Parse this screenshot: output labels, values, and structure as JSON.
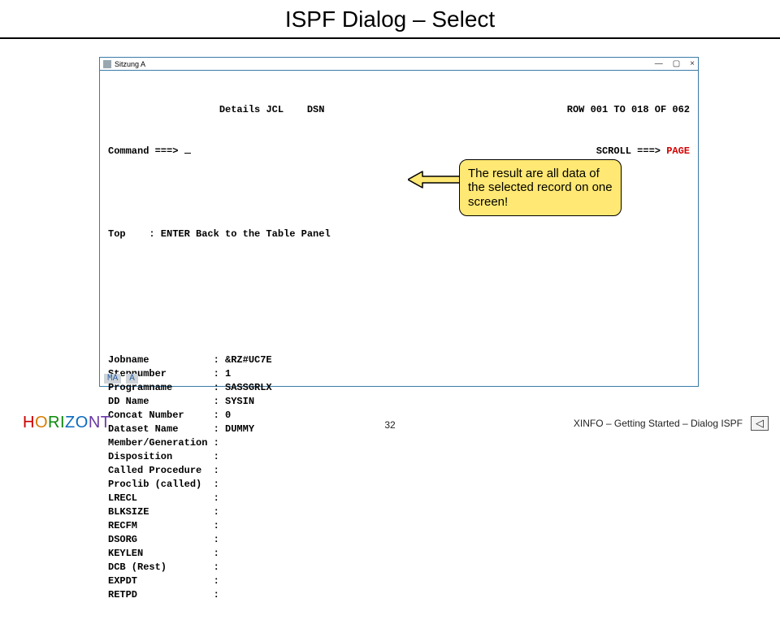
{
  "slide": {
    "title": "ISPF Dialog – Select"
  },
  "window": {
    "session_label": "Sitzung A",
    "screen_title_left": "Details JCL",
    "screen_title_right": "DSN",
    "row_info": "ROW 001 TO 018 OF 062",
    "scroll_label": "SCROLL ===>",
    "scroll_value": "PAGE",
    "command_label": "Command ===>",
    "help_line": "Top    : ENTER Back to the Table Panel",
    "status_left": "MA",
    "status_right": "A",
    "fields": [
      {
        "label": "Jobname",
        "value": "&RZ#UC7E"
      },
      {
        "label": "Stepnumber",
        "value": "1"
      },
      {
        "label": "Programname",
        "value": "SASSGRLX"
      },
      {
        "label": "DD Name",
        "value": "SYSIN"
      },
      {
        "label": "Concat Number",
        "value": "0"
      },
      {
        "label": "Dataset Name",
        "value": "DUMMY"
      },
      {
        "label": "Member/Generation",
        "value": ""
      },
      {
        "label": "Disposition",
        "value": ""
      },
      {
        "label": "Called Procedure",
        "value": ""
      },
      {
        "label": "Proclib (called)",
        "value": ""
      },
      {
        "label": "LRECL",
        "value": ""
      },
      {
        "label": "BLKSIZE",
        "value": ""
      },
      {
        "label": "RECFM",
        "value": ""
      },
      {
        "label": "DSORG",
        "value": ""
      },
      {
        "label": "KEYLEN",
        "value": ""
      },
      {
        "label": "DCB (Rest)",
        "value": ""
      },
      {
        "label": "EXPDT",
        "value": ""
      },
      {
        "label": "RETPD",
        "value": ""
      }
    ]
  },
  "callout": {
    "text": "The result are all data of the selected record on one screen!"
  },
  "footer": {
    "brand": "HORIZONT",
    "page": "32",
    "right_text": "XINFO – Getting Started – Dialog ISPF",
    "back_glyph": "◁"
  },
  "layout": {
    "label_width": 18,
    "pad_char": " "
  }
}
